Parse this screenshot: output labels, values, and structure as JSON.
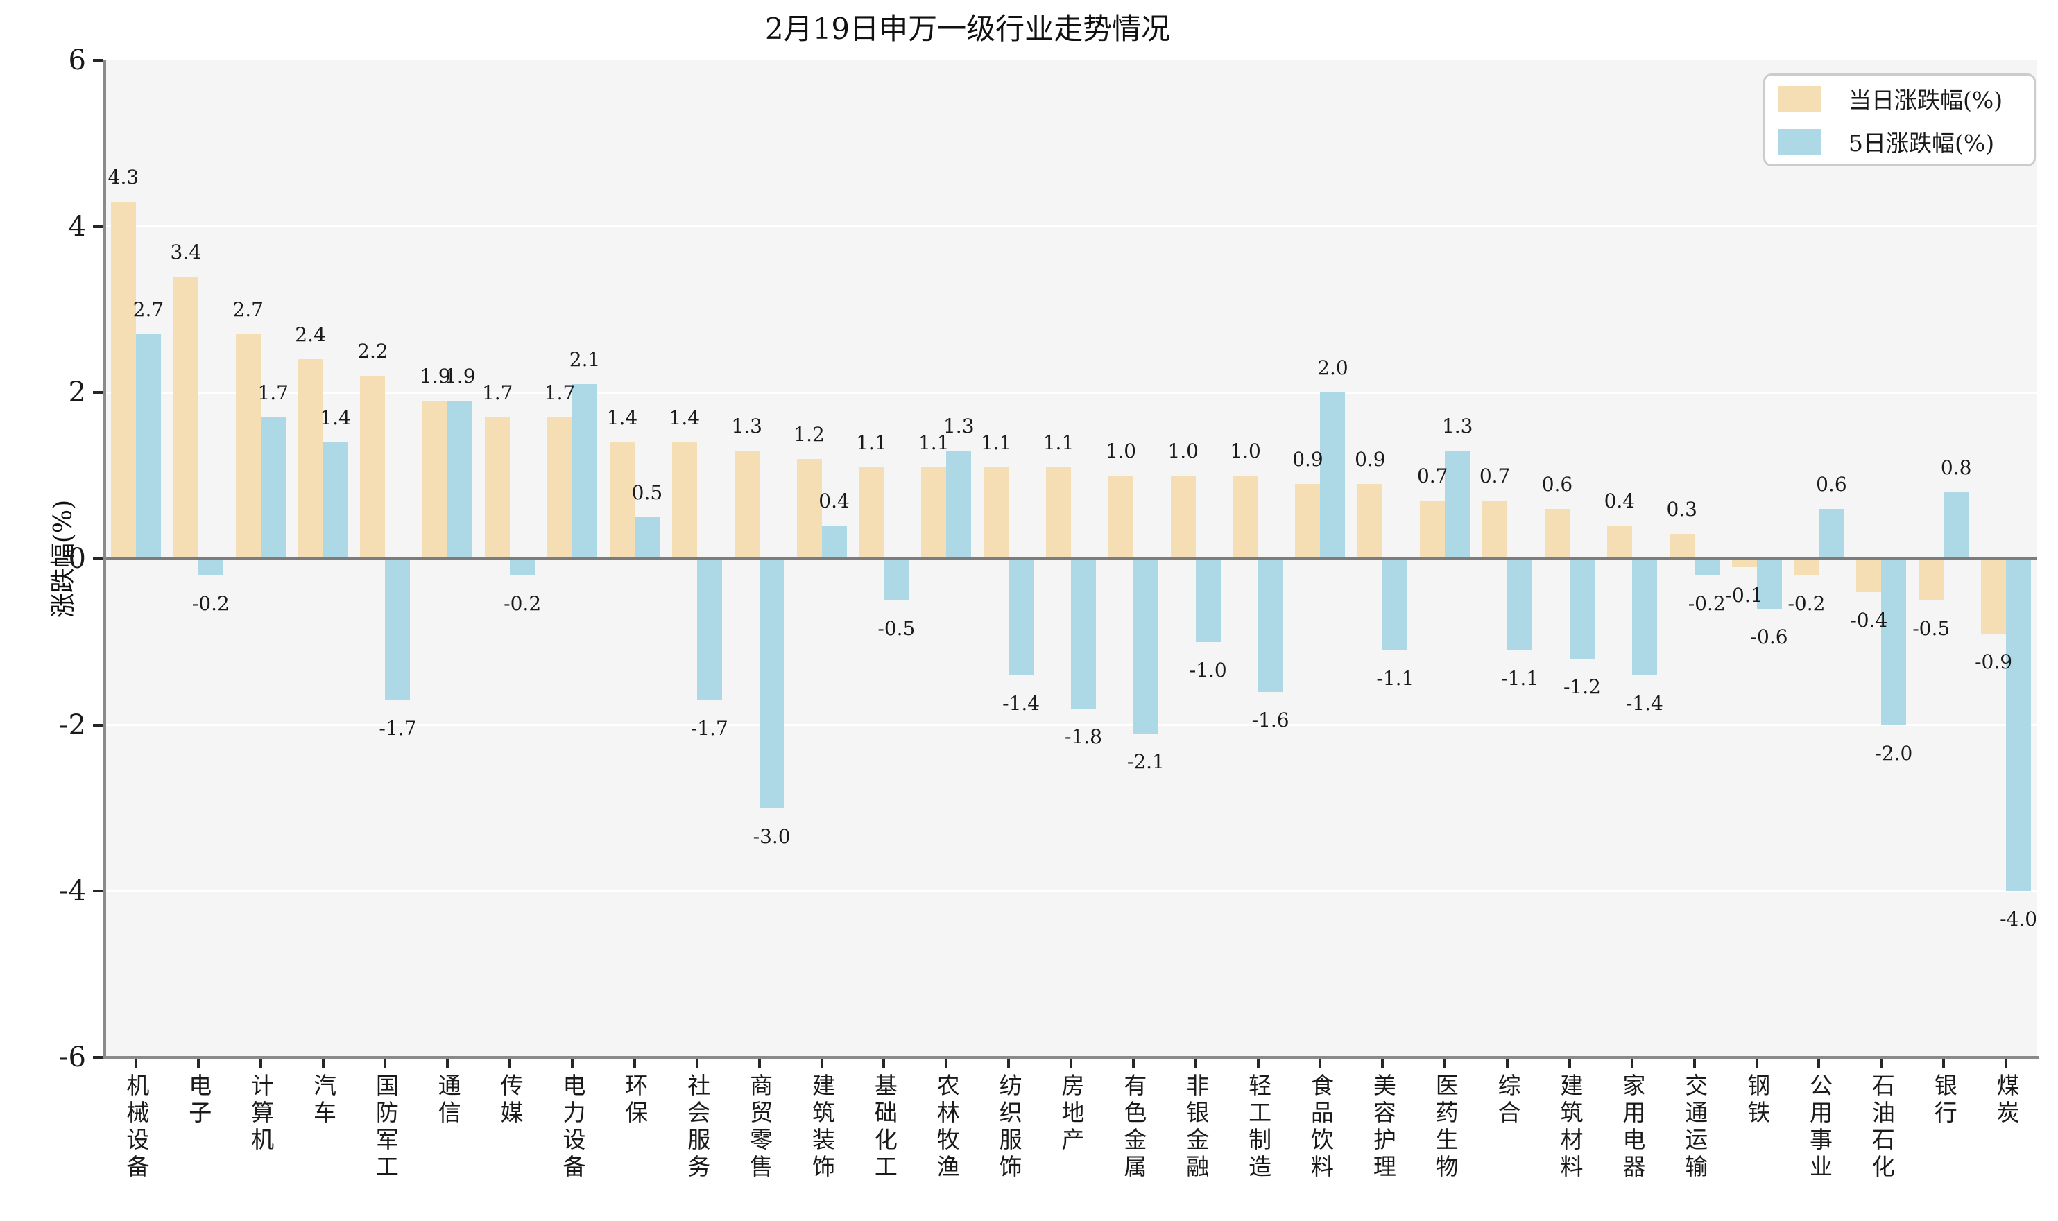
{
  "title": "2月19日申万一级行业走势情况",
  "y_axis": {
    "label": "涨跌幅(%)",
    "ticks": [
      6,
      4,
      2,
      0,
      -2,
      -4,
      -6
    ]
  },
  "legend": {
    "items": [
      {
        "label": "当日涨跌幅(%)",
        "color": "#F5DEB3"
      },
      {
        "label": "5日涨跌幅(%)",
        "color": "#ADD8E6"
      }
    ]
  },
  "colors": {
    "daily_bar": "#F5DEB3",
    "five_day_bar": "#ADD8E6",
    "plot_bg": "#F5F5F5",
    "gridline": "#FFFFFF",
    "zero_line": "#7C7C7C",
    "spine": "#8A8A8A",
    "tick_mark": "#262626",
    "text": "#1A1A1A"
  },
  "chart_data": {
    "type": "bar",
    "title": "2月19日申万一级行业走势情况",
    "xlabel": "",
    "ylabel": "涨跌幅(%)",
    "ylim": [
      -6,
      6
    ],
    "yticks": [
      6,
      4,
      2,
      0,
      -2,
      -4,
      -6
    ],
    "grid": true,
    "legend_position": "upper-right",
    "value_labels": true,
    "categories": [
      "机械设备",
      "电子",
      "计算机",
      "汽车",
      "国防军工",
      "通信",
      "传媒",
      "电力设备",
      "环保",
      "社会服务",
      "商贸零售",
      "建筑装饰",
      "基础化工",
      "农林牧渔",
      "纺织服饰",
      "房地产",
      "有色金属",
      "非银金融",
      "轻工制造",
      "食品饮料",
      "美容护理",
      "医药生物",
      "综合",
      "建筑材料",
      "家用电器",
      "交通运输",
      "钢铁",
      "公用事业",
      "石油石化",
      "银行",
      "煤炭"
    ],
    "series": [
      {
        "name": "当日涨跌幅(%)",
        "color": "#F5DEB3",
        "values": [
          4.3,
          3.4,
          2.7,
          2.4,
          2.2,
          1.9,
          1.7,
          1.7,
          1.4,
          1.4,
          1.3,
          1.2,
          1.1,
          1.1,
          1.1,
          1.1,
          1.0,
          1.0,
          1.0,
          0.9,
          0.9,
          0.7,
          0.7,
          0.6,
          0.4,
          0.3,
          -0.1,
          -0.2,
          -0.4,
          -0.5,
          -0.9
        ]
      },
      {
        "name": "5日涨跌幅(%)",
        "color": "#ADD8E6",
        "values": [
          2.7,
          -0.2,
          1.7,
          1.4,
          -1.7,
          1.9,
          -0.2,
          2.1,
          0.5,
          -1.7,
          -3.0,
          0.4,
          -0.5,
          1.3,
          -1.4,
          -1.8,
          -2.1,
          -1.0,
          -1.6,
          2.0,
          -1.1,
          1.3,
          -1.1,
          -1.2,
          -1.4,
          -0.2,
          -0.6,
          0.6,
          -2.0,
          0.8,
          -4.0
        ]
      }
    ]
  }
}
